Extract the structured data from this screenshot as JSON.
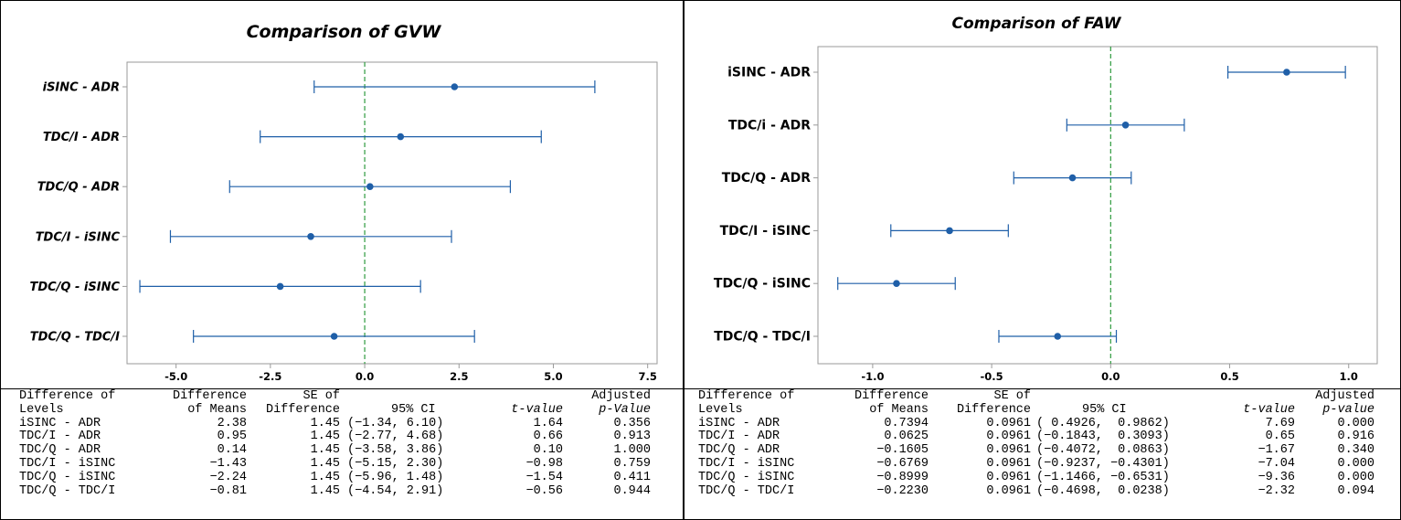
{
  "chart_data": [
    {
      "type": "interval",
      "title": "Comparison of GVW",
      "categories": [
        "iSINC - ADR",
        "TDC/I - ADR",
        "TDC/Q - ADR",
        "TDC/I - iSINC",
        "TDC/Q - iSINC",
        "TDC/Q - TDC/I"
      ],
      "estimates": [
        2.38,
        0.95,
        0.14,
        -1.43,
        -2.24,
        -0.81
      ],
      "ci_low": [
        -1.34,
        -2.77,
        -3.58,
        -5.15,
        -5.96,
        -4.54
      ],
      "ci_high": [
        6.1,
        4.68,
        3.86,
        2.3,
        1.48,
        2.91
      ],
      "xlim": [
        -6.3,
        7.75
      ],
      "xticks": [
        -5.0,
        -2.5,
        0.0,
        2.5,
        5.0,
        7.5
      ],
      "xtick_labels": [
        "-5.0",
        "-2.5",
        "0.0",
        "2.5",
        "5.0",
        "7.5"
      ],
      "reference_line": 0,
      "grid": false,
      "table": {
        "headers": {
          "col1": [
            "Difference of",
            "Levels"
          ],
          "col2": [
            "Difference",
            "of Means"
          ],
          "col3": [
            "SE of",
            "Difference"
          ],
          "col4": [
            "",
            "95% CI"
          ],
          "col5": [
            "",
            "t-value"
          ],
          "col6": [
            "Adjusted",
            "p-Value"
          ]
        },
        "rows": [
          [
            "iSINC - ADR",
            "2.38",
            "1.45",
            "(−1.34, 6.10)",
            "1.64",
            "0.356"
          ],
          [
            "TDC/I - ADR",
            "0.95",
            "1.45",
            "(−2.77, 4.68)",
            "0.66",
            "0.913"
          ],
          [
            "TDC/Q - ADR",
            "0.14",
            "1.45",
            "(−3.58, 3.86)",
            "0.10",
            "1.000"
          ],
          [
            "TDC/I - iSINC",
            "−1.43",
            "1.45",
            "(−5.15, 2.30)",
            "−0.98",
            "0.759"
          ],
          [
            "TDC/Q - iSINC",
            "−2.24",
            "1.45",
            "(−5.96, 1.48)",
            "−1.54",
            "0.411"
          ],
          [
            "TDC/Q - TDC/I",
            "−0.81",
            "1.45",
            "(−4.54, 2.91)",
            "−0.56",
            "0.944"
          ]
        ]
      }
    },
    {
      "type": "interval",
      "title": "Comparison of FAW",
      "categories": [
        "iSINC - ADR",
        "TDC/i - ADR",
        "TDC/Q - ADR",
        "TDC/I - iSINC",
        "TDC/Q - iSINC",
        "TDC/Q - TDC/I"
      ],
      "estimates": [
        0.7394,
        0.0625,
        -0.1605,
        -0.6769,
        -0.8999,
        -0.223
      ],
      "ci_low": [
        0.4926,
        -0.1843,
        -0.4072,
        -0.9237,
        -1.1466,
        -0.4698
      ],
      "ci_high": [
        0.9862,
        0.3093,
        0.0863,
        -0.4301,
        -0.6531,
        0.0238
      ],
      "xlim": [
        -1.23,
        1.12
      ],
      "xticks": [
        -1.0,
        -0.5,
        0.0,
        0.5,
        1.0
      ],
      "xtick_labels": [
        "-1.0",
        "-0.5",
        "0.0",
        "0.5",
        "1.0"
      ],
      "reference_line": 0,
      "grid": false,
      "table": {
        "headers": {
          "col1": [
            "Difference of",
            "Levels"
          ],
          "col2": [
            "Difference",
            "of Means"
          ],
          "col3": [
            "SE of",
            "Difference"
          ],
          "col4": [
            "",
            "95% CI"
          ],
          "col5": [
            "",
            "t-value"
          ],
          "col6": [
            "Adjusted",
            "p-value"
          ]
        },
        "rows": [
          [
            "iSINC - ADR",
            "0.7394",
            "0.0961",
            "( 0.4926,  0.9862)",
            "7.69",
            "0.000"
          ],
          [
            "TDC/I - ADR",
            "0.0625",
            "0.0961",
            "(−0.1843,  0.3093)",
            "0.65",
            "0.916"
          ],
          [
            "TDC/Q - ADR",
            "−0.1605",
            "0.0961",
            "(−0.4072,  0.0863)",
            "−1.67",
            "0.340"
          ],
          [
            "TDC/I - iSINC",
            "−0.6769",
            "0.0961",
            "(−0.9237, −0.4301)",
            "−7.04",
            "0.000"
          ],
          [
            "TDC/Q - iSINC",
            "−0.8999",
            "0.0961",
            "(−1.1466, −0.6531)",
            "−9.36",
            "0.000"
          ],
          [
            "TDC/Q - TDC/I",
            "−0.2230",
            "0.0961",
            "(−0.4698,  0.0238)",
            "−2.32",
            "0.094"
          ]
        ]
      }
    }
  ],
  "colors": {
    "interval": "#1f5fa8",
    "reference_line": "#2e9a3e",
    "axis": "#9a9a9a",
    "text": "#000000"
  }
}
